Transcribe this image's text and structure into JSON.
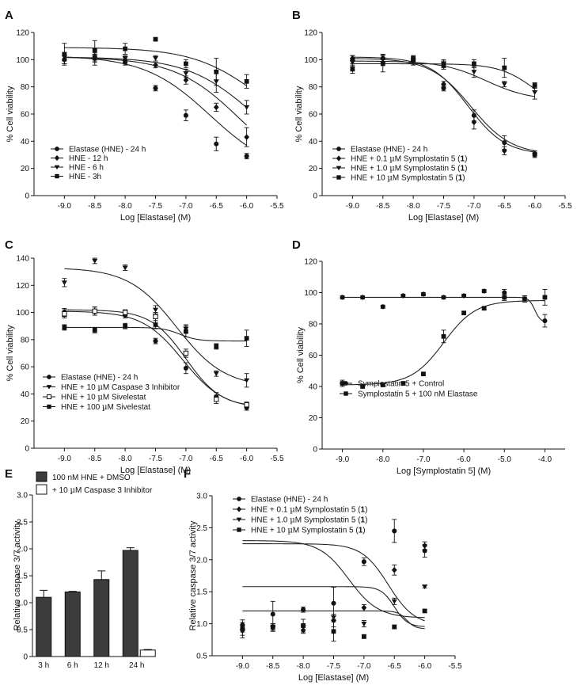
{
  "chart_data": [
    {
      "id": "A",
      "letter": "A",
      "type": "line",
      "xlabel": "Log [Elastase] (M)",
      "ylabel": "% Cell viability",
      "xlim": [
        -9.5,
        -5.5
      ],
      "ylim": [
        0,
        120
      ],
      "xticks": [
        -9.0,
        -8.5,
        -8.0,
        -7.5,
        -7.0,
        -6.5,
        -6.0,
        -5.5
      ],
      "xtick_labels": [
        "-9.0",
        "-8.5",
        "-8.0",
        "-7.5",
        "-7.0",
        "-6.5",
        "-6.0",
        "-5.5"
      ],
      "yticks": [
        0,
        20,
        40,
        60,
        80,
        100,
        120
      ],
      "series": [
        {
          "name": "Elastase (HNE) - 24 h",
          "legend": [
            "Elastase (HNE) - 24 h"
          ],
          "marker": "circle",
          "x": [
            -9,
            -8.5,
            -8,
            -7.5,
            -7,
            -6.5,
            -6
          ],
          "y": [
            100,
            101,
            98,
            79,
            59,
            38,
            29
          ],
          "err": [
            3,
            3,
            2,
            2,
            4,
            5,
            2
          ],
          "curve": {
            "top": 103,
            "bottom": 15,
            "ec50": -6.6,
            "hill": 0.8
          }
        },
        {
          "name": "HNE - 12 h",
          "legend": [
            "HNE - 12 h"
          ],
          "marker": "diamond",
          "x": [
            -9,
            -8.5,
            -8,
            -7.5,
            -7,
            -6.5,
            -6
          ],
          "y": [
            100,
            102,
            100,
            96,
            85,
            65,
            43
          ],
          "err": [
            3,
            6,
            2,
            2,
            3,
            3,
            7
          ],
          "curve": {
            "top": 102,
            "bottom": 10,
            "ec50": -6.1,
            "hill": 0.8
          }
        },
        {
          "name": "HNE - 6 h",
          "legend": [
            "HNE - 6 h"
          ],
          "marker": "triangle-down",
          "x": [
            -9,
            -8.5,
            -8,
            -7.5,
            -7,
            -6.5,
            -6
          ],
          "y": [
            102,
            102,
            101,
            101,
            90,
            84,
            65
          ],
          "err": [
            3,
            3,
            2,
            2,
            3,
            8,
            5
          ],
          "curve": {
            "top": 102,
            "bottom": 20,
            "ec50": -5.9,
            "hill": 0.8
          }
        },
        {
          "name": "HNE - 3h",
          "legend": [
            "HNE - 3h"
          ],
          "marker": "square",
          "x": [
            -9,
            -8.5,
            -8,
            -7.5,
            -7,
            -6.5,
            -6
          ],
          "y": [
            104,
            107,
            108,
            115,
            97,
            91,
            84
          ],
          "err": [
            8,
            7,
            4,
            1,
            3,
            10,
            5
          ],
          "curve": {
            "top": 109,
            "bottom": 40,
            "ec50": -5.8,
            "hill": 0.8
          }
        }
      ]
    },
    {
      "id": "B",
      "letter": "B",
      "type": "line",
      "xlabel": "Log [Elastase] (M)",
      "ylabel": "% Cell viability",
      "xlim": [
        -9.5,
        -5.5
      ],
      "ylim": [
        0,
        120
      ],
      "xticks": [
        -9.0,
        -8.5,
        -8.0,
        -7.5,
        -7.0,
        -6.5,
        -6.0,
        -5.5
      ],
      "xtick_labels": [
        "-9.0",
        "-8.5",
        "-8.0",
        "-7.5",
        "-7.0",
        "-6.5",
        "-6.0",
        "-5.5"
      ],
      "yticks": [
        0,
        20,
        40,
        60,
        80,
        100,
        120
      ],
      "series": [
        {
          "name": "Elastase (HNE) - 24 h",
          "legend": [
            "Elastase (HNE) - 24 h"
          ],
          "marker": "circle",
          "x": [
            -9,
            -8.5,
            -8,
            -7.5,
            -7,
            -6.5,
            -6
          ],
          "y": [
            100,
            101,
            98,
            79,
            59,
            39,
            30
          ],
          "err": [
            3,
            3,
            2,
            2,
            4,
            5,
            2
          ],
          "curve": {
            "top": 101,
            "bottom": 30,
            "ec50": -7.05,
            "hill": 1.3
          }
        },
        {
          "name": "HNE + 0.1 µM Symplostatin 5 (1)",
          "legend": [
            "HNE + 0.1 ",
            "µ",
            "M Symplostatin 5 (",
            "1",
            ")"
          ],
          "marker": "diamond",
          "x": [
            -9,
            -8.5,
            -8,
            -7.5,
            -7,
            -6.5,
            -6
          ],
          "y": [
            101,
            101,
            99,
            82,
            54,
            33,
            31
          ],
          "err": [
            2,
            3,
            2,
            2,
            5,
            3,
            2
          ],
          "curve": {
            "top": 102,
            "bottom": 30,
            "ec50": -7.1,
            "hill": 1.4
          }
        },
        {
          "name": "HNE + 1.0 µM Symplostatin 5 (1)",
          "legend": [
            "HNE + 1.0 ",
            "µ",
            "M Symplostatin 5 (",
            "1",
            ")"
          ],
          "marker": "triangle-down",
          "x": [
            -9,
            -8.5,
            -8,
            -7.5,
            -7,
            -6.5,
            -6
          ],
          "y": [
            98,
            100,
            99,
            97,
            91,
            82,
            76
          ],
          "err": [
            3,
            3,
            2,
            3,
            4,
            2,
            5
          ],
          "curve": {
            "top": 99,
            "bottom": 70,
            "ec50": -6.8,
            "hill": 1.2
          }
        },
        {
          "name": "HNE + 10 µM Symplostatin 5 (1)",
          "legend": [
            "HNE + 10 ",
            "µ",
            "M Symplostatin 5 (",
            "1",
            ")"
          ],
          "marker": "square",
          "x": [
            -9,
            -8.5,
            -8,
            -7.5,
            -7,
            -6.5,
            -6
          ],
          "y": [
            93,
            97,
            101,
            96,
            97,
            94,
            81
          ],
          "err": [
            3,
            6,
            2,
            3,
            3,
            7,
            2
          ],
          "curve": {
            "top": 97,
            "bottom": 60,
            "ec50": -6.0,
            "hill": 1.5
          }
        }
      ]
    },
    {
      "id": "C",
      "letter": "C",
      "type": "line",
      "xlabel": "Log [Elastase] (M)",
      "ylabel": "% Cell viability",
      "xlim": [
        -9.5,
        -5.5
      ],
      "ylim": [
        0,
        140
      ],
      "xticks": [
        -9.0,
        -8.5,
        -8.0,
        -7.5,
        -7.0,
        -6.5,
        -6.0,
        -5.5
      ],
      "xtick_labels": [
        "-9.0",
        "-8.5",
        "-8.0",
        "-7.5",
        "-7.0",
        "-6.5",
        "-6.0",
        "-5.5"
      ],
      "yticks": [
        0,
        20,
        40,
        60,
        80,
        100,
        120,
        140
      ],
      "series": [
        {
          "name": "Elastase (HNE) - 24 h",
          "legend": [
            "Elastase (HNE) - 24 h"
          ],
          "marker": "circle",
          "x": [
            -9,
            -8.5,
            -8,
            -7.5,
            -7,
            -6.5,
            -6
          ],
          "y": [
            100,
            101,
            98,
            79,
            59,
            38,
            30
          ],
          "err": [
            3,
            3,
            2,
            2,
            4,
            3,
            2
          ],
          "curve": {
            "top": 101,
            "bottom": 29,
            "ec50": -7.05,
            "hill": 1.3
          }
        },
        {
          "name": "HNE + 10 µM Caspase 3 Inhibitor",
          "legend": [
            "HNE + 10 ",
            "µ",
            "M Caspase 3 Inhibitor"
          ],
          "marker": "triangle-down",
          "x": [
            -9,
            -8.5,
            -8,
            -7.5,
            -7,
            -6.5,
            -6
          ],
          "y": [
            122,
            138,
            133,
            102,
            88,
            55,
            50
          ],
          "err": [
            3,
            2,
            2,
            3,
            3,
            2,
            5
          ],
          "curve": {
            "top": 133,
            "bottom": 45,
            "ec50": -7.15,
            "hill": 1.1
          }
        },
        {
          "name": "HNE + 10 µM Sivelestat",
          "legend": [
            "HNE + 10 ",
            "µ",
            "M Sivelestat"
          ],
          "marker": "open-square",
          "x": [
            -9,
            -8.5,
            -8,
            -7.5,
            -7,
            -6.5,
            -6
          ],
          "y": [
            99,
            101,
            100,
            97,
            70,
            36,
            32
          ],
          "err": [
            3,
            3,
            2,
            3,
            3,
            3,
            2
          ],
          "curve": {
            "top": 102,
            "bottom": 30,
            "ec50": -7.0,
            "hill": 1.5
          }
        },
        {
          "name": "HNE + 100 µM Sivelestat",
          "legend": [
            "HNE + 100 ",
            "µ",
            "M Sivelestat"
          ],
          "marker": "square",
          "x": [
            -9,
            -8.5,
            -8,
            -7.5,
            -7,
            -6.5,
            -6
          ],
          "y": [
            89,
            87,
            90,
            91,
            86,
            75,
            81
          ],
          "err": [
            2,
            2,
            2,
            3,
            4,
            2,
            6
          ],
          "curve": {
            "top": 89,
            "bottom": 79,
            "ec50": -7.1,
            "hill": 3
          }
        }
      ]
    },
    {
      "id": "D",
      "letter": "D",
      "type": "line",
      "xlabel": "Log [Symplostatin 5] (M)",
      "ylabel": "% Cell viability",
      "xlim": [
        -9.5,
        -3.5
      ],
      "ylim": [
        0,
        120
      ],
      "xticks": [
        -9.0,
        -8.0,
        -7.0,
        -6.0,
        -5.0,
        -4.0
      ],
      "xtick_labels": [
        "-9.0",
        "-8.0",
        "-7.0",
        "-6.0",
        "-5.0",
        "-4.0"
      ],
      "yticks": [
        0,
        20,
        40,
        60,
        80,
        100,
        120
      ],
      "series": [
        {
          "name": "Symplostatin 5 + Control",
          "legend": [
            "Symplostatin 5 + Control"
          ],
          "marker": "circle",
          "x": [
            -9,
            -8.5,
            -8,
            -7.5,
            -7,
            -6.5,
            -6,
            -5.5,
            -5,
            -4.5,
            -4
          ],
          "y": [
            97,
            97,
            91,
            98,
            99,
            97,
            98,
            101,
            100,
            96,
            82
          ],
          "err": [
            1,
            1,
            1,
            1,
            1,
            1,
            1,
            1,
            2,
            2,
            4
          ],
          "curve": {
            "type": "flat_drop",
            "top": 97,
            "bottom": 81,
            "ec50": -4.25,
            "hill": 6
          }
        },
        {
          "name": "Symplostatin 5 + 100 nM Elastase",
          "legend": [
            "Symplostatin 5 + 100 nM Elastase"
          ],
          "marker": "square",
          "x": [
            -9,
            -8.5,
            -8,
            -7.5,
            -7,
            -6.5,
            -6,
            -5.5,
            -5,
            -4.5,
            -4
          ],
          "y": [
            42,
            40,
            41,
            42,
            48,
            72,
            87,
            90,
            97,
            96,
            97
          ],
          "err": [
            2,
            1,
            1,
            1,
            1,
            4,
            1,
            1,
            2,
            2,
            5
          ],
          "curve": {
            "type": "rise",
            "top": 95,
            "bottom": 41,
            "ec50": -6.5,
            "hill": 1.1
          }
        }
      ]
    },
    {
      "id": "E",
      "letter": "E",
      "type": "bar",
      "ylabel": "Relative caspase 3/7 activity",
      "ylim": [
        0,
        3.0
      ],
      "yticks": [
        0,
        0.5,
        1.0,
        1.5,
        2.0,
        2.5,
        3.0
      ],
      "ytick_labels": [
        "0",
        "0.5",
        "1.0",
        "1.5",
        "2.0",
        "2.5",
        "3.0"
      ],
      "categories": [
        "3 h",
        "6 h",
        "12 h",
        "24 h"
      ],
      "series": [
        {
          "name": "100 nM HNE + DMSO",
          "legend": [
            "100 nM HNE + DMSO"
          ],
          "color": "#3c3c3c",
          "values": [
            1.1,
            1.2,
            1.43,
            1.97
          ],
          "err": [
            0.13,
            0.01,
            0.16,
            0.05
          ]
        },
        {
          "name": "+ 10 µM Caspase 3 Inhibitor",
          "legend": [
            "+ 10 ",
            "µ",
            "M Caspase 3 Inhibitor"
          ],
          "color": "#ffffff",
          "values": [
            null,
            null,
            null,
            0.12
          ],
          "err": [
            0,
            0,
            0,
            0.01
          ]
        }
      ]
    },
    {
      "id": "F",
      "letter": "F",
      "type": "line",
      "xlabel": "Log [Elastase] (M)",
      "ylabel": "Relative caspase 3/7 activity",
      "xlim": [
        -9.5,
        -5.5
      ],
      "ylim": [
        0.5,
        3.0
      ],
      "xticks": [
        -9.0,
        -8.5,
        -8.0,
        -7.5,
        -7.0,
        -6.5,
        -6.0,
        -5.5
      ],
      "xtick_labels": [
        "-9.0",
        "-8.5",
        "-8.0",
        "-7.5",
        "-7.0",
        "-6.5",
        "-6.0",
        "-5.5"
      ],
      "yticks": [
        0.5,
        1.0,
        1.5,
        2.0,
        2.5,
        3.0
      ],
      "ytick_labels": [
        "0.5",
        "1.0",
        "1.5",
        "2.0",
        "2.5",
        "3.0"
      ],
      "series": [
        {
          "name": "Elastase (HNE) - 24 h",
          "legend": [
            "Elastase (HNE) - 24 h"
          ],
          "marker": "circle",
          "x": [
            -9,
            -8.5,
            -8,
            -7.5,
            -7,
            -6.5,
            -6
          ],
          "y": [
            0.98,
            1.15,
            1.22,
            1.32,
            1.97,
            2.45,
            2.14
          ],
          "err": [
            0.08,
            0.2,
            0.04,
            0.25,
            0.06,
            0.18,
            0.1
          ],
          "curve": {
            "top": 2.3,
            "bottom": 1.09,
            "ec50": -7.25,
            "hill": 1.8
          }
        },
        {
          "name": "HNE + 0.1 µM Symplostatin 5 (1)",
          "legend": [
            "HNE + 0.1 ",
            "µ",
            "M Symplostatin 5 (",
            "1",
            ")"
          ],
          "marker": "diamond",
          "x": [
            -9,
            -8.5,
            -8,
            -7.5,
            -7,
            -6.5,
            -6
          ],
          "y": [
            0.92,
            0.95,
            0.9,
            1.05,
            1.25,
            1.84,
            2.22
          ],
          "err": [
            0.05,
            0.05,
            0.05,
            0.1,
            0.05,
            0.08,
            0.06
          ],
          "curve": {
            "top": 2.25,
            "bottom": 0.97,
            "ec50": -6.6,
            "hill": 2
          }
        },
        {
          "name": "HNE + 1.0 µM Symplostatin 5 (1)",
          "legend": [
            "HNE + 1.0 ",
            "µ",
            "M Symplostatin 5 (",
            "1",
            ")"
          ],
          "marker": "triangle-down",
          "x": [
            -9,
            -8.5,
            -8,
            -7.5,
            -7,
            -6.5,
            -6
          ],
          "y": [
            0.88,
            0.93,
            0.95,
            1.1,
            1.0,
            1.35,
            1.58
          ],
          "err": [
            0.1,
            0.05,
            0.05,
            0.05,
            0.05,
            0.05,
            0.02
          ],
          "curve": {
            "top": 1.58,
            "bottom": 0.95,
            "ec50": -6.5,
            "hill": 4
          }
        },
        {
          "name": "HNE + 10 µM Symplostatin 5 (1)",
          "legend": [
            "HNE + 10 ",
            "µ",
            "M Symplostatin 5 (",
            "1",
            ")"
          ],
          "marker": "square",
          "x": [
            -9,
            -8.5,
            -8,
            -7.5,
            -7,
            -6.5,
            -6
          ],
          "y": [
            0.92,
            0.95,
            0.97,
            0.88,
            0.8,
            0.95,
            1.2
          ],
          "err": [
            0.1,
            0.05,
            0.1,
            0.15,
            0.03,
            0.03,
            0.02
          ],
          "curve": {
            "top": 1.2,
            "bottom": 0.92,
            "ec50": -6.3,
            "hill": 6
          }
        }
      ]
    }
  ]
}
